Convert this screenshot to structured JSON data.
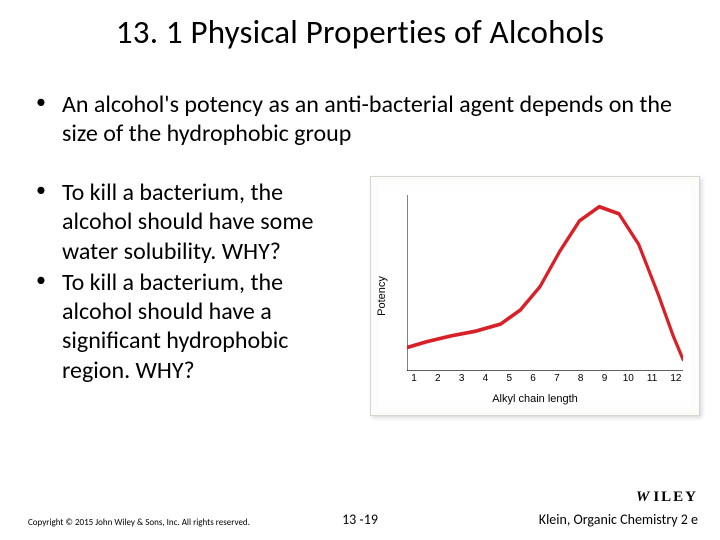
{
  "title": "13. 1 Physical Properties of Alcohols",
  "bullets": {
    "top": [
      "An alcohol's potency as an anti-bacterial agent depends on the size of the hydrophobic group"
    ],
    "left": [
      "To kill a bacterium, the alcohol should have some water solubility. WHY?",
      "To kill a bacterium, the alcohol should have a significant hydrophobic region. WHY?"
    ]
  },
  "chart": {
    "type": "line",
    "y_label": "Potency",
    "x_label": "Alkyl chain length",
    "x_ticks": [
      "1",
      "2",
      "3",
      "4",
      "5",
      "6",
      "7",
      "8",
      "9",
      "10",
      "11",
      "12"
    ],
    "series": {
      "points": [
        [
          0,
          130
        ],
        [
          20,
          125
        ],
        [
          45,
          120
        ],
        [
          70,
          116
        ],
        [
          95,
          110
        ],
        [
          115,
          98
        ],
        [
          135,
          78
        ],
        [
          155,
          48
        ],
        [
          175,
          22
        ],
        [
          195,
          10
        ],
        [
          215,
          16
        ],
        [
          235,
          42
        ],
        [
          255,
          85
        ],
        [
          270,
          120
        ],
        [
          280,
          140
        ]
      ],
      "color": "#d82028",
      "width": 3.2
    },
    "axis_color": "#000000",
    "background": "#ffffff",
    "border": "#d7d5cf",
    "tick_font_size": 10,
    "label_font_size": 11
  },
  "footer": {
    "left": "Copyright © 2015 John Wiley & Sons, Inc. All rights reserved.",
    "center": "13 -19",
    "right": "Klein, Organic Chemistry 2 e",
    "logo_prefix": "W",
    "logo_text": "ILEY"
  }
}
